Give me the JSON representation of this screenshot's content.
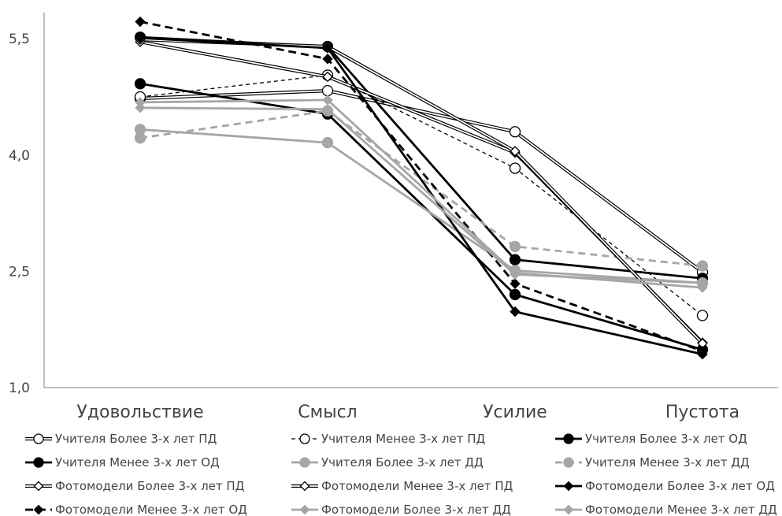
{
  "chart_data": {
    "type": "line",
    "title": "",
    "xlabel": "",
    "ylabel": "",
    "categories": [
      "Удовольствие",
      "Смысл",
      "Усилие",
      "Пустота"
    ],
    "y_tick_labels": [
      "1,0",
      "2,5",
      "4,0",
      "5,5"
    ],
    "y_ticks": [
      1.0,
      2.5,
      4.0,
      5.5
    ],
    "ylim": [
      1.0,
      6.0
    ],
    "grid": false,
    "legend_position": "bottom",
    "series": [
      {
        "name": "Учителя Более 3-х лет ПД",
        "values": [
          4.73,
          4.83,
          4.3,
          2.49
        ],
        "color": "#000000",
        "line": "double",
        "dash": "",
        "marker": "circle-open"
      },
      {
        "name": "Учителя Менее 3-х лет ПД",
        "values": [
          4.75,
          5.03,
          3.83,
          1.93
        ],
        "color": "#000000",
        "line": "thin",
        "dash": "5,4",
        "marker": "circle-open"
      },
      {
        "name": "Учителя Более 3-х лет ОД",
        "values": [
          5.52,
          5.4,
          2.65,
          2.41
        ],
        "color": "#000000",
        "line": "thick",
        "dash": "",
        "marker": "circle-filled"
      },
      {
        "name": "Учителя Менее 3-х лет ОД",
        "values": [
          4.92,
          4.53,
          2.2,
          1.49
        ],
        "color": "#000000",
        "line": "thick",
        "dash": "",
        "marker": "circle-filled"
      },
      {
        "name": "Учителя Более 3-х лет ДД",
        "values": [
          4.33,
          4.16,
          2.51,
          2.35
        ],
        "color": "#a6a6a6",
        "line": "thick",
        "dash": "",
        "marker": "circle-filled"
      },
      {
        "name": "Учителя Менее 3-х лет ДД",
        "values": [
          4.22,
          4.57,
          2.82,
          2.57
        ],
        "color": "#a6a6a6",
        "line": "thick",
        "dash": "9,6",
        "marker": "circle-filled"
      },
      {
        "name": "Фотомодели Более 3-х лет ПД",
        "values": [
          5.46,
          5.01,
          4.03,
          1.58
        ],
        "color": "#000000",
        "line": "double",
        "dash": "",
        "marker": "diamond-open"
      },
      {
        "name": "Фотомодели Менее 3-х лет ПД",
        "values": [
          5.49,
          5.4,
          4.05,
          1.57
        ],
        "color": "#000000",
        "line": "double",
        "dash": "",
        "marker": "diamond-open"
      },
      {
        "name": "Фотомодели Более 3-х лет ОД",
        "values": [
          5.51,
          5.38,
          1.98,
          1.43
        ],
        "color": "#000000",
        "line": "thick",
        "dash": "",
        "marker": "diamond-filled"
      },
      {
        "name": "Фотомодели Менее 3-х лет ОД",
        "values": [
          5.72,
          5.24,
          2.34,
          1.47
        ],
        "color": "#000000",
        "line": "thick",
        "dash": "10,6",
        "marker": "diamond-filled"
      },
      {
        "name": "Фотомодели Более 3-х лет ДД",
        "values": [
          4.61,
          4.59,
          2.46,
          2.35
        ],
        "color": "#a6a6a6",
        "line": "thick",
        "dash": "",
        "marker": "diamond-filled"
      },
      {
        "name": "Фотомодели Менее 3-х лет ДД",
        "values": [
          4.68,
          4.71,
          2.48,
          2.29
        ],
        "color": "#a6a6a6",
        "line": "thick",
        "dash": "",
        "marker": "diamond-filled"
      }
    ]
  }
}
